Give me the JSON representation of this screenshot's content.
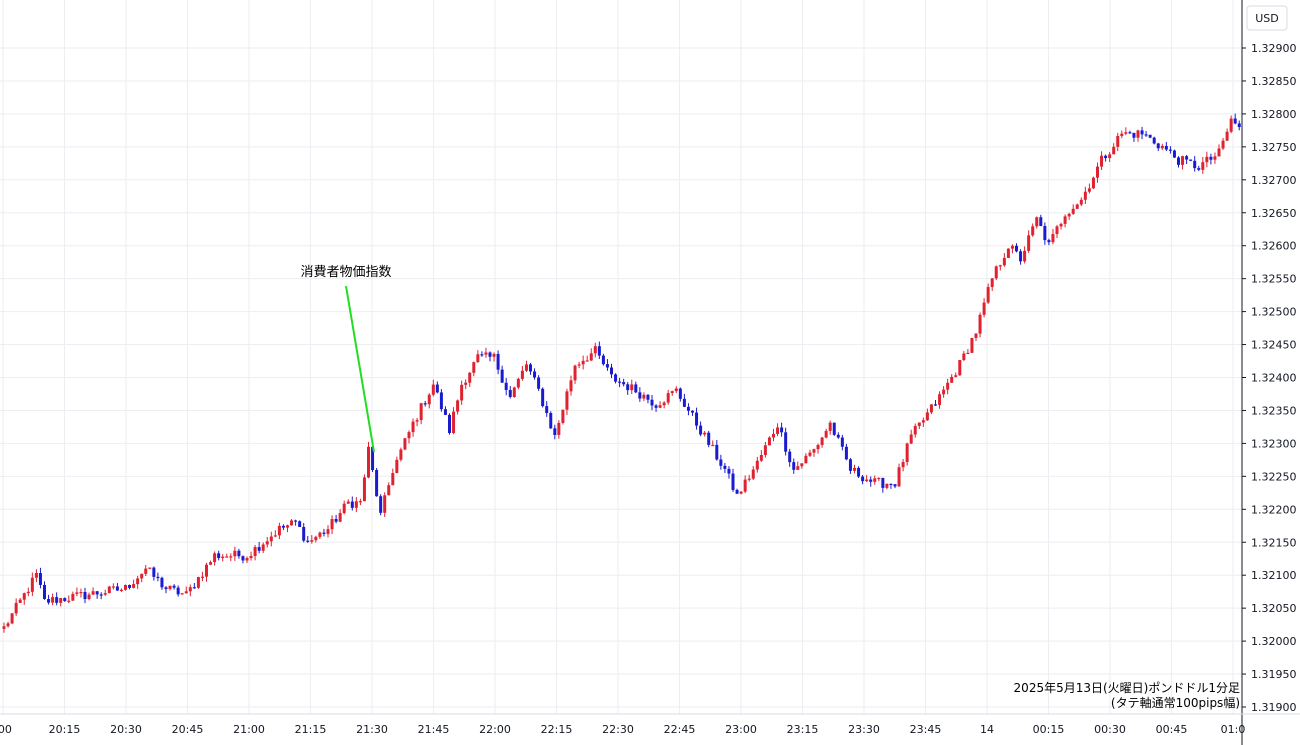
{
  "chart_data": {
    "type": "candlestick",
    "pair_currency": "USD",
    "caption_line1": "2025年5月13日(火曜日)ポンドドル1分足",
    "caption_line2": "(タテ軸通常100pips幅)",
    "event_label": "消費者物価指数",
    "ylim": [
      1.31885,
      1.3296
    ],
    "y_ticks": [
      "1.32900",
      "1.32850",
      "1.32800",
      "1.32750",
      "1.32700",
      "1.32650",
      "1.32600",
      "1.32550",
      "1.32500",
      "1.32450",
      "1.32400",
      "1.32350",
      "1.32300",
      "1.32250",
      "1.32200",
      "1.32150",
      "1.32100",
      "1.32050",
      "1.32000",
      "1.31950",
      "1.31900"
    ],
    "x_ticks": [
      ":00",
      "20:15",
      "20:30",
      "20:45",
      "21:00",
      "21:15",
      "21:30",
      "21:45",
      "22:00",
      "22:15",
      "22:30",
      "22:45",
      "23:00",
      "23:15",
      "23:30",
      "23:45",
      "14",
      "00:15",
      "00:30",
      "00:45",
      "01:0"
    ],
    "series_anchors": [
      [
        0,
        1.3202
      ],
      [
        8,
        1.321
      ],
      [
        10,
        1.3206
      ],
      [
        20,
        1.3207
      ],
      [
        30,
        1.3208
      ],
      [
        35,
        1.3211
      ],
      [
        40,
        1.3208
      ],
      [
        45,
        1.3207
      ],
      [
        52,
        1.3213
      ],
      [
        60,
        1.3213
      ],
      [
        68,
        1.3217
      ],
      [
        72,
        1.3218
      ],
      [
        75,
        1.3215
      ],
      [
        80,
        1.3217
      ],
      [
        85,
        1.3221
      ],
      [
        88,
        1.3221
      ],
      [
        90,
        1.3229
      ],
      [
        93,
        1.3219
      ],
      [
        96,
        1.3226
      ],
      [
        101,
        1.3233
      ],
      [
        106,
        1.3239
      ],
      [
        110,
        1.3232
      ],
      [
        113,
        1.3239
      ],
      [
        117,
        1.3243
      ],
      [
        121,
        1.3243
      ],
      [
        125,
        1.3237
      ],
      [
        129,
        1.3242
      ],
      [
        132,
        1.3238
      ],
      [
        136,
        1.3231
      ],
      [
        141,
        1.3242
      ],
      [
        146,
        1.3244
      ],
      [
        150,
        1.324
      ],
      [
        156,
        1.3238
      ],
      [
        161,
        1.3236
      ],
      [
        166,
        1.3238
      ],
      [
        172,
        1.3232
      ],
      [
        178,
        1.3226
      ],
      [
        181,
        1.3222
      ],
      [
        186,
        1.3227
      ],
      [
        191,
        1.3233
      ],
      [
        195,
        1.3226
      ],
      [
        200,
        1.3229
      ],
      [
        204,
        1.3233
      ],
      [
        209,
        1.3226
      ],
      [
        215,
        1.3224
      ],
      [
        220,
        1.3224
      ],
      [
        224,
        1.3231
      ],
      [
        231,
        1.3237
      ],
      [
        236,
        1.3242
      ],
      [
        240,
        1.3247
      ],
      [
        244,
        1.3255
      ],
      [
        248,
        1.326
      ],
      [
        251,
        1.3258
      ],
      [
        255,
        1.3264
      ],
      [
        258,
        1.326
      ],
      [
        262,
        1.3265
      ],
      [
        266,
        1.3267
      ],
      [
        271,
        1.3273
      ],
      [
        276,
        1.3277
      ],
      [
        281,
        1.3277
      ],
      [
        286,
        1.3275
      ],
      [
        290,
        1.3273
      ],
      [
        295,
        1.3272
      ],
      [
        300,
        1.3274
      ],
      [
        303,
        1.3279
      ],
      [
        305,
        1.3278
      ]
    ]
  }
}
